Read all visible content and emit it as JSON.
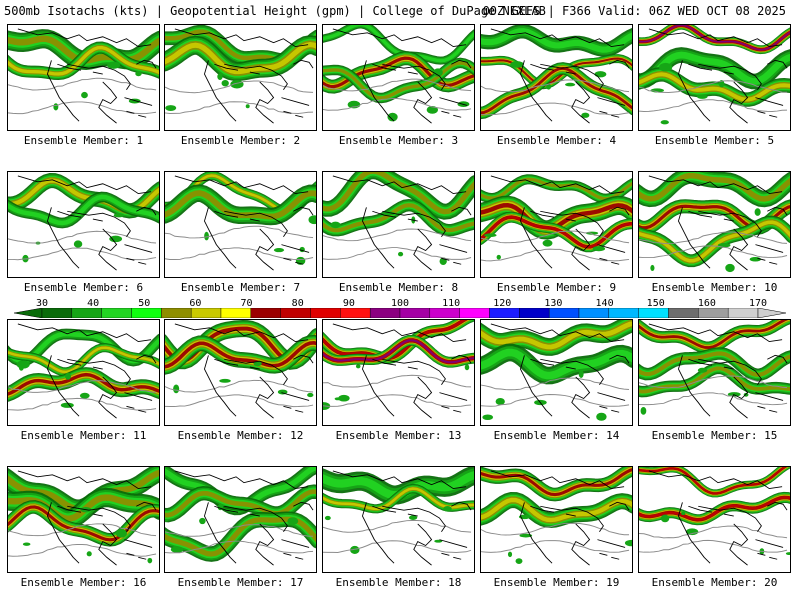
{
  "header": {
    "left_text": "500mb Isotachs (kts) | Geopotential Height (gpm) | College of DuPage NEXLAB",
    "right_text": "00Z GEFS | F366 Valid: 06Z WED OCT 08 2025"
  },
  "panels": [
    {
      "label": "Ensemble Member: 1"
    },
    {
      "label": "Ensemble Member: 2"
    },
    {
      "label": "Ensemble Member: 3"
    },
    {
      "label": "Ensemble Member: 4"
    },
    {
      "label": "Ensemble Member: 5"
    },
    {
      "label": "Ensemble Member: 6"
    },
    {
      "label": "Ensemble Member: 7"
    },
    {
      "label": "Ensemble Member: 8"
    },
    {
      "label": "Ensemble Member: 9"
    },
    {
      "label": "Ensemble Member: 10"
    },
    {
      "label": "Ensemble Member: 11"
    },
    {
      "label": "Ensemble Member: 12"
    },
    {
      "label": "Ensemble Member: 13"
    },
    {
      "label": "Ensemble Member: 14"
    },
    {
      "label": "Ensemble Member: 15"
    },
    {
      "label": "Ensemble Member: 16"
    },
    {
      "label": "Ensemble Member: 17"
    },
    {
      "label": "Ensemble Member: 18"
    },
    {
      "label": "Ensemble Member: 19"
    },
    {
      "label": "Ensemble Member: 20"
    }
  ],
  "color_scale": {
    "ticks": [
      "30",
      "40",
      "50",
      "60",
      "70",
      "80",
      "90",
      "100",
      "110",
      "120",
      "130",
      "140",
      "150",
      "160",
      "170"
    ],
    "colors": [
      "#0a6b0a",
      "#16a516",
      "#22d422",
      "#0fff0f",
      "#8e8e00",
      "#c9c900",
      "#ffff00",
      "#9b0000",
      "#c00000",
      "#e00000",
      "#ff1010",
      "#8b0080",
      "#a400a4",
      "#cc00cc",
      "#ff00ff",
      "#1c1cff",
      "#0000c8",
      "#0050ff",
      "#0090ff",
      "#00b8ff",
      "#00e0ff",
      "#6e6e6e",
      "#9e9e9e",
      "#cfcfcf"
    ]
  },
  "colors": {
    "jet_weak": "#1e9a1e",
    "jet_mid": "#c2b800",
    "jet_strong": "#b40000",
    "jet_extreme": "#7a007a",
    "height_contour": "#8c8c8c",
    "coastline": "#000000"
  }
}
